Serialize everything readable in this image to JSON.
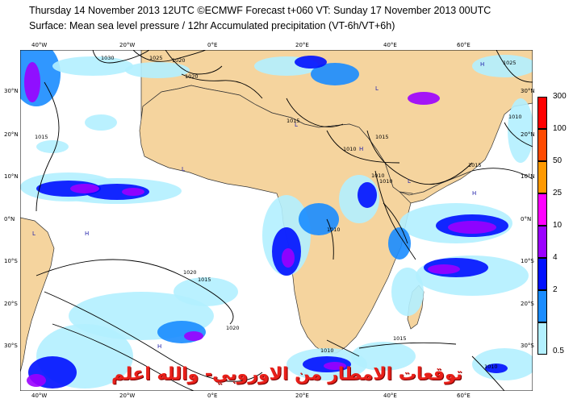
{
  "header": {
    "line1": "Thursday 14 November 2013 12UTC ©ECMWF Forecast t+060 VT: Sunday 17 November 2013 00UTC",
    "line2": "Surface: Mean sea level pressure / 12hr Accumulated precipitation (VT-6h/VT+6h)"
  },
  "axes": {
    "lon_top": [
      "40°W",
      "20°W",
      "0°E",
      "20°E",
      "40°E",
      "60°E"
    ],
    "lon_bottom": [
      "40°W",
      "20°W",
      "0°E",
      "20°E",
      "40°E",
      "60°E"
    ],
    "lat_left": [
      "30°N",
      "20°N",
      "10°N",
      "0°N",
      "10°S",
      "20°S",
      "30°S"
    ],
    "lat_right": [
      "30°N",
      "20°N",
      "10°N",
      "0°N",
      "10°S",
      "20°S",
      "30°S"
    ]
  },
  "legend": {
    "levels": [
      "300",
      "100",
      "50",
      "25",
      "10",
      "4",
      "2",
      "0.5"
    ],
    "colors": [
      "#ff0000",
      "#ff4a00",
      "#ff9900",
      "#ff00ff",
      "#9b00ff",
      "#0010ff",
      "#1a8cff",
      "#b3f0ff"
    ]
  },
  "isobars": [
    {
      "label": "1030"
    },
    {
      "label": "1025"
    },
    {
      "label": "1020"
    },
    {
      "label": "1020"
    },
    {
      "label": "1025"
    },
    {
      "label": "1015"
    },
    {
      "label": "1010"
    },
    {
      "label": "1015"
    },
    {
      "label": "1010"
    },
    {
      "label": "1010"
    },
    {
      "label": "1015"
    },
    {
      "label": "1015"
    },
    {
      "label": "1020"
    },
    {
      "label": "1010"
    },
    {
      "label": "1010"
    },
    {
      "label": "1015"
    },
    {
      "label": "1020"
    },
    {
      "label": "1010"
    },
    {
      "label": "1015"
    },
    {
      "label": "1010"
    }
  ],
  "pressure_marks": [
    "L",
    "L",
    "L",
    "L",
    "H",
    "H",
    "H",
    "H",
    "L",
    "H"
  ],
  "watermark": "توقعات الامطار من الاوروبي- والله اعلم",
  "colors": {
    "land": "#f5d49e",
    "ocean": "#ffffff",
    "isobar": "#000000",
    "coast": "#222222"
  }
}
